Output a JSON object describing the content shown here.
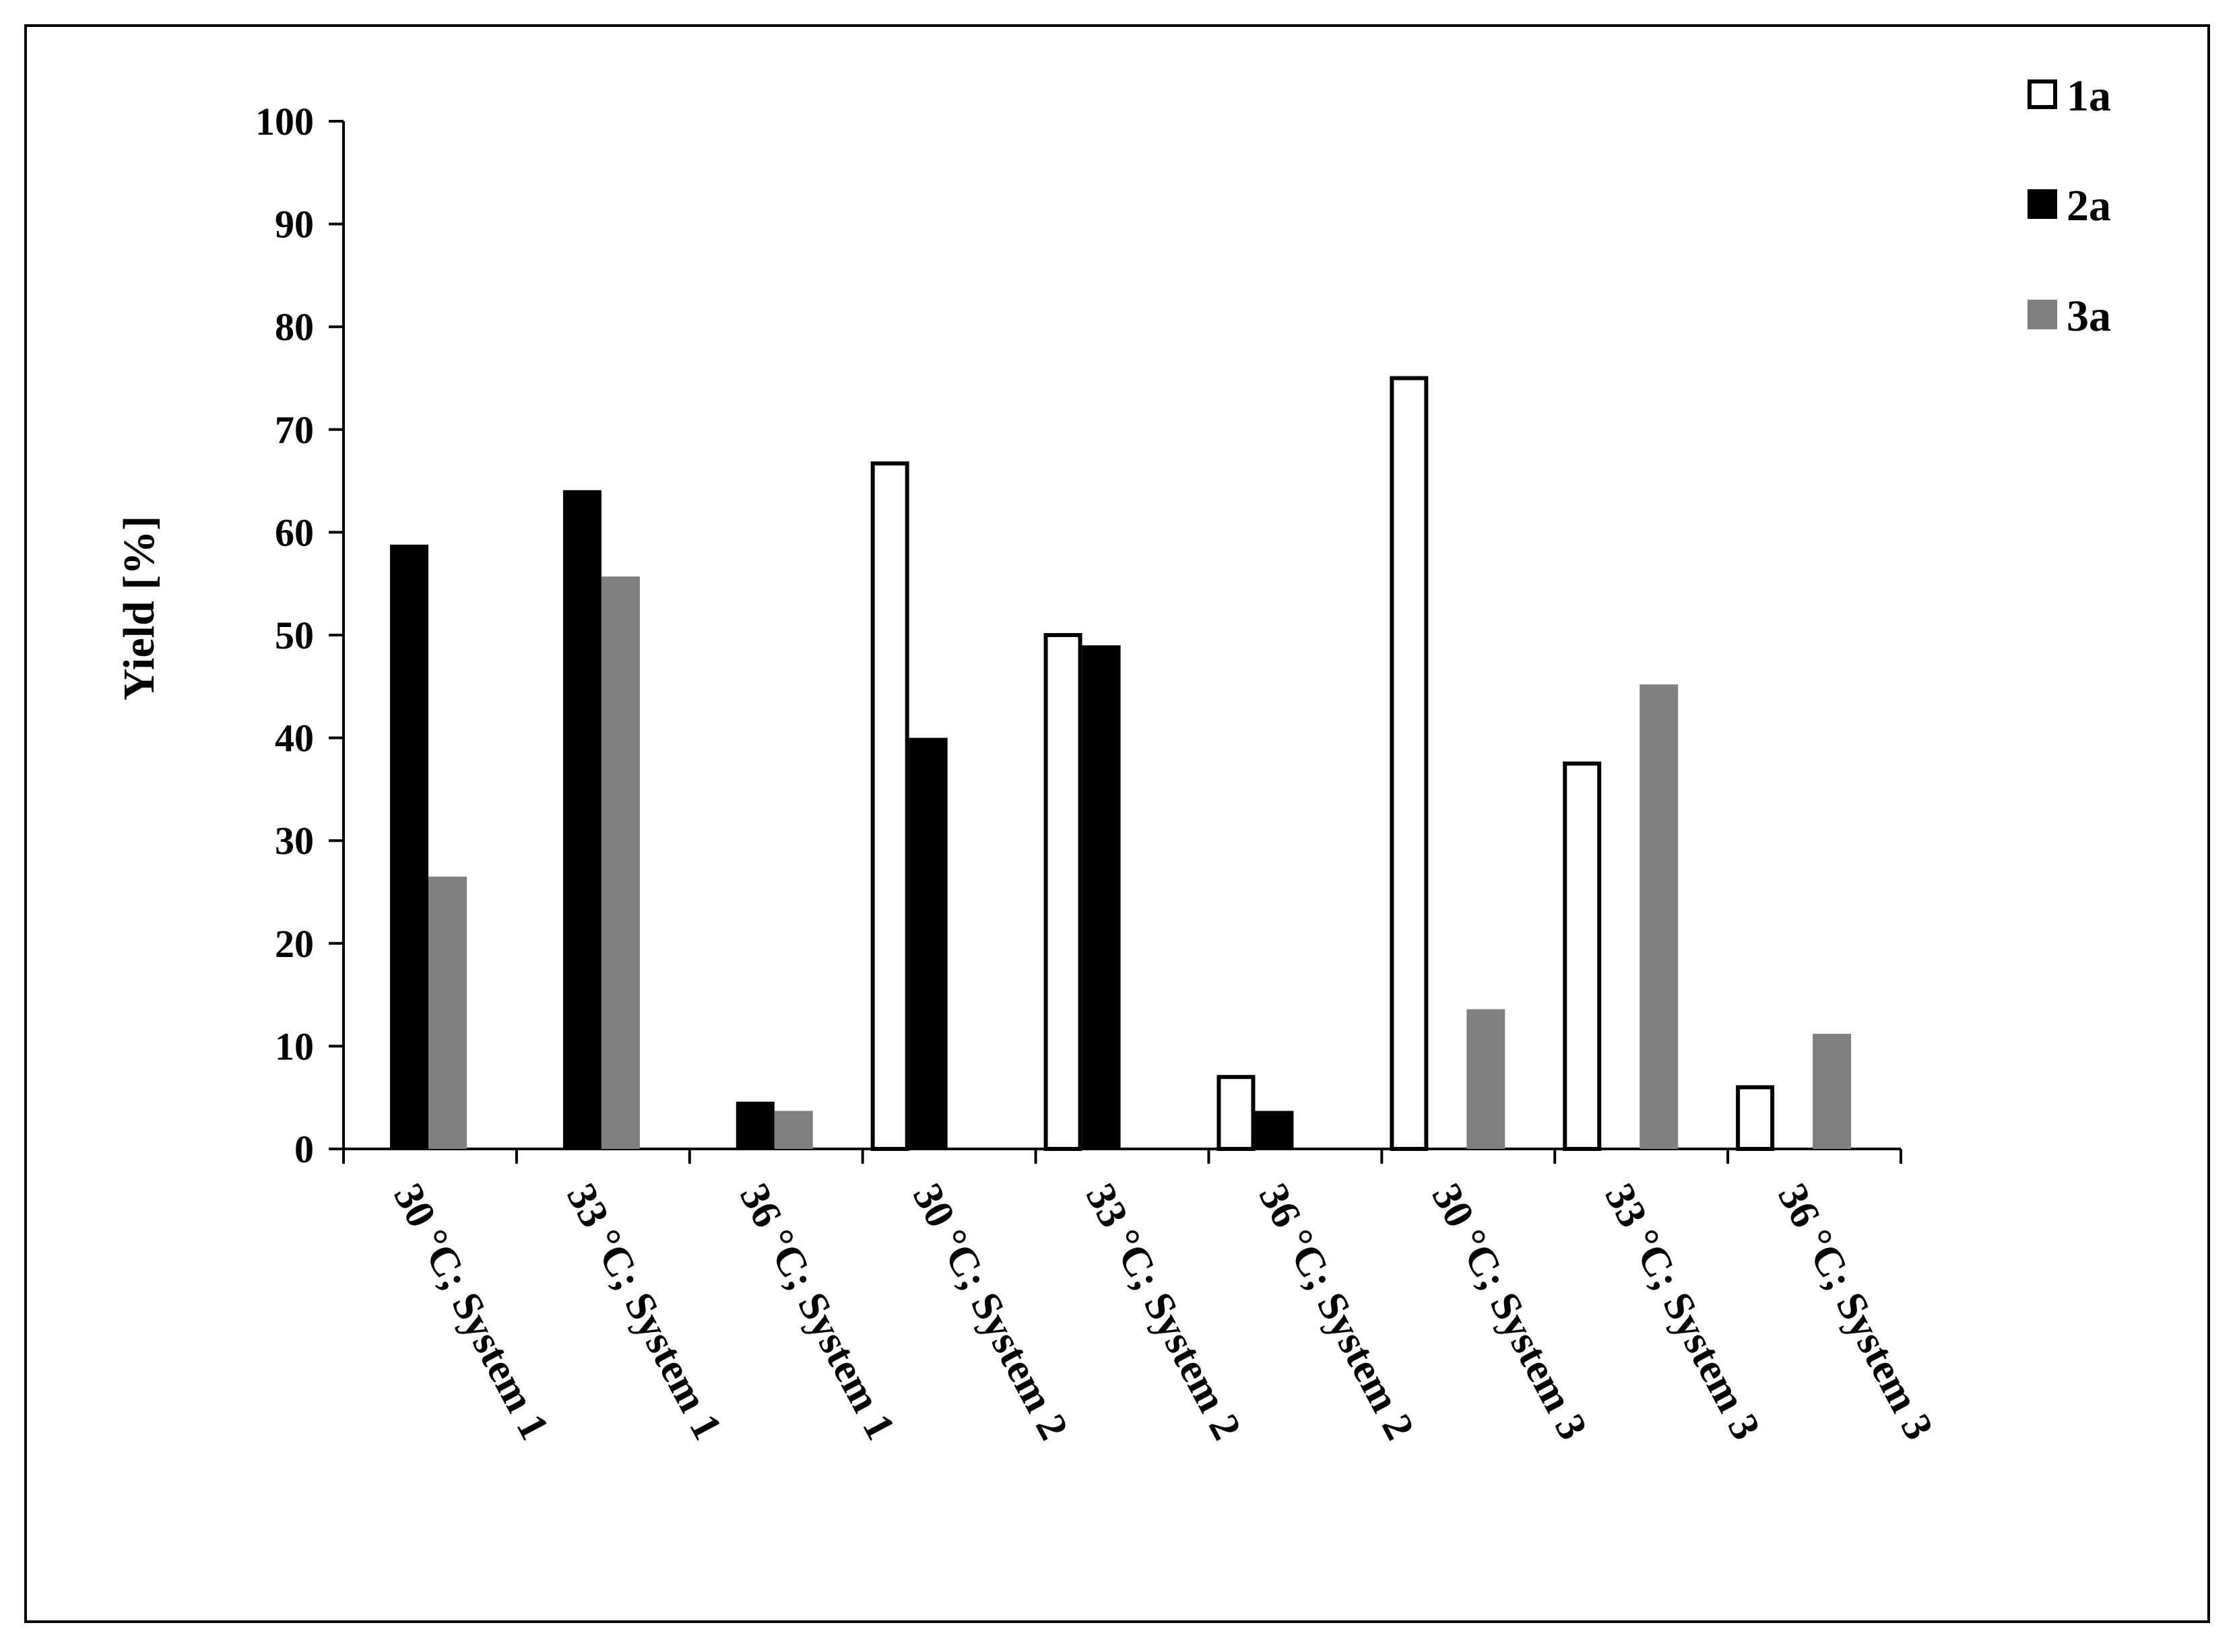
{
  "chart_data": {
    "type": "bar",
    "title": "",
    "xlabel": "",
    "ylabel": "Yield [%]",
    "ylim": [
      0,
      100
    ],
    "yticks": [
      0,
      10,
      20,
      30,
      40,
      50,
      60,
      70,
      80,
      90,
      100
    ],
    "grid": false,
    "legend_position": "top-right",
    "categories": [
      "30 °C; System 1",
      "33 °C; System 1",
      "36 °C; System 1",
      "30 °C; System 2",
      "33 °C; System 2",
      "36 °C; System 2",
      "30 °C; System 3",
      "33 °C; System 3",
      "36 °C; System 3"
    ],
    "series": [
      {
        "name": "1a",
        "fill": "#ffffff",
        "stroke": "#000000",
        "values": [
          0,
          0,
          0,
          66.7,
          50.0,
          7.0,
          75.0,
          37.5,
          6.0
        ]
      },
      {
        "name": "2a",
        "fill": "#000000",
        "stroke": "#000000",
        "values": [
          58.8,
          64.1,
          4.6,
          40.0,
          49.0,
          3.7,
          0,
          0,
          0
        ]
      },
      {
        "name": "3a",
        "fill": "#808080",
        "stroke": "#808080",
        "values": [
          26.5,
          55.7,
          3.7,
          0,
          0,
          0,
          13.6,
          45.2,
          11.2
        ]
      }
    ]
  }
}
